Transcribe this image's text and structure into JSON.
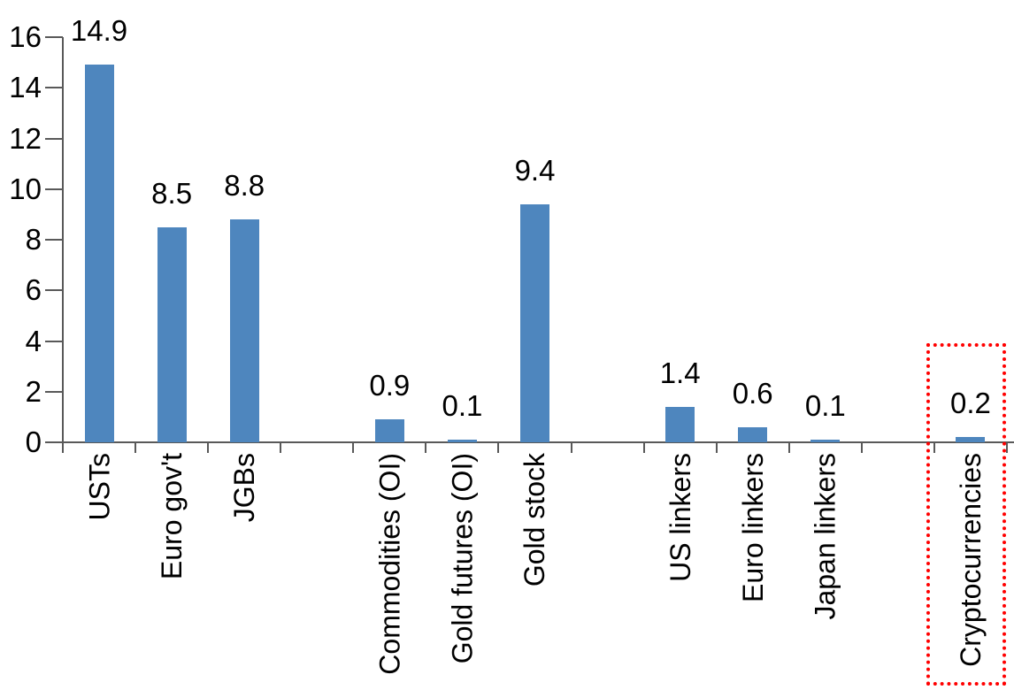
{
  "chart_data": {
    "type": "bar",
    "title": "",
    "xlabel": "",
    "ylabel": "",
    "categories": [
      "USTs",
      "Euro gov't",
      "JGBs",
      "Commodities (OI)",
      "Gold futures (OI)",
      "Gold stock",
      "US linkers",
      "Euro linkers",
      "Japan linkers",
      "Cryptocurrencies"
    ],
    "values": [
      14.9,
      8.5,
      8.8,
      0.9,
      0.1,
      9.4,
      1.4,
      0.6,
      0.1,
      0.2
    ],
    "data_labels": [
      "14.9",
      "8.5",
      "8.8",
      "0.9",
      "0.1",
      "9.4",
      "1.4",
      "0.6",
      "0.1",
      "0.2"
    ],
    "ylim": [
      0,
      16
    ],
    "yticks": [
      0,
      2,
      4,
      6,
      8,
      10,
      12,
      14,
      16
    ],
    "ytick_labels": [
      "0",
      "2",
      "4",
      "6",
      "8",
      "10",
      "12",
      "14",
      "16"
    ],
    "grid": false,
    "legend": false,
    "category_label_rotation": "vertical-bottom-to-top",
    "group_slots": [
      0,
      1,
      2,
      4,
      5,
      6,
      8,
      9,
      10,
      12
    ],
    "total_slots": 13,
    "bar_color": "#4E86BE",
    "axis_color": "#595959",
    "text_color": "#000000",
    "highlight": {
      "category": "Cryptocurrencies",
      "shape": "dotted-box",
      "color": "#FF0000"
    }
  }
}
